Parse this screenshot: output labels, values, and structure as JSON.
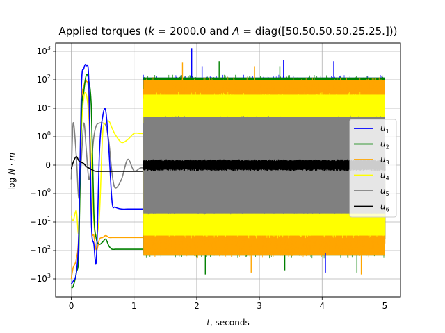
{
  "chart_data": {
    "type": "line",
    "title": "Applied torques (k = 2000.0 and Λ = diag([50.50.50.50.25.25.]))",
    "title_parts": {
      "prefix": "Applied torques (",
      "k_symbol": "k",
      "k_value": " = 2000.0 and ",
      "lambda_symbol": "Λ",
      "lambda_value": " = diag([50.50.50.50.25.25.]))"
    },
    "xlabel": "t, seconds",
    "xlabel_parts": {
      "var": "t",
      "rest": ", seconds"
    },
    "ylabel": "log N · m",
    "ylabel_parts": {
      "prefix": "log ",
      "N": "N",
      "dot": " · ",
      "m": "m"
    },
    "xlim": [
      -0.25,
      5.25
    ],
    "x_ticks": [
      0,
      1,
      2,
      3,
      4,
      5
    ],
    "x_tick_labels": [
      "0",
      "1",
      "2",
      "3",
      "4",
      "5"
    ],
    "y_scale": "symlog",
    "y_ticks": [
      1000,
      100,
      10,
      1,
      0,
      -1,
      -10,
      -100,
      -1000
    ],
    "y_tick_labels": [
      {
        "base": "10",
        "exp": "3"
      },
      {
        "base": "10",
        "exp": "2"
      },
      {
        "base": "10",
        "exp": "1"
      },
      {
        "base": "10",
        "exp": "0"
      },
      {
        "base": "0",
        "exp": ""
      },
      {
        "base": "−10",
        "exp": "0"
      },
      {
        "base": "−10",
        "exp": "1"
      },
      {
        "base": "−10",
        "exp": "2"
      },
      {
        "base": "−10",
        "exp": "3"
      }
    ],
    "grid": true,
    "legend_position": "center-right",
    "series": [
      {
        "name": "u1",
        "label_base": "u",
        "label_sub": "1",
        "color": "#0000ff"
      },
      {
        "name": "u2",
        "label_base": "u",
        "label_sub": "2",
        "color": "#008000"
      },
      {
        "name": "u3",
        "label_base": "u",
        "label_sub": "3",
        "color": "#ffa500"
      },
      {
        "name": "u4",
        "label_base": "u",
        "label_sub": "4",
        "color": "#ffff00"
      },
      {
        "name": "u5",
        "label_base": "u",
        "label_sub": "5",
        "color": "#808080"
      },
      {
        "name": "u6",
        "label_base": "u",
        "label_sub": "6",
        "color": "#000000"
      }
    ],
    "transient": {
      "x": [
        0,
        0.03,
        0.08,
        0.12,
        0.16,
        0.2,
        0.24,
        0.28,
        0.32,
        0.36,
        0.4,
        0.45,
        0.5,
        0.55,
        0.6,
        0.65,
        0.7,
        0.8,
        0.9,
        1.0,
        1.1,
        1.15
      ],
      "u1": [
        -1500,
        -1200,
        -600,
        -20,
        50,
        250,
        320,
        80,
        -10,
        -60,
        -200,
        0.5,
        5,
        8,
        0.5,
        -2,
        -3,
        -3.5,
        -3.5,
        -3.5,
        -3.5,
        -3.5
      ],
      "u2": [
        -2000,
        -1800,
        -600,
        -100,
        5,
        40,
        150,
        90,
        10,
        -5,
        -40,
        -60,
        -50,
        -40,
        -70,
        -90,
        -90,
        -90,
        -90,
        -90,
        -90,
        -90
      ],
      "u3": [
        -1000,
        -400,
        -200,
        -20,
        10,
        60,
        90,
        20,
        -10,
        -30,
        -100,
        -40,
        -35,
        -30,
        -35,
        -35,
        -35,
        -35,
        -35,
        -35,
        -35,
        -35
      ],
      "u4": [
        -6,
        -9,
        -4,
        -20,
        1.5,
        25,
        30,
        5,
        0.2,
        -10,
        -30,
        -5,
        1.2,
        3,
        3.5,
        2,
        1.2,
        0.8,
        0.9,
        1.3,
        1.3,
        1.3
      ],
      "u5": [
        -0.5,
        3,
        0.3,
        -1.5,
        0.2,
        3,
        0.5,
        -0.5,
        0.1,
        1,
        2.5,
        3,
        3,
        2.5,
        0.8,
        -0.3,
        -0.8,
        -0.5,
        0.2,
        -0.2,
        -0.1,
        -0.1
      ],
      "u6": [
        -0.15,
        0.1,
        0.3,
        0.15,
        0.1,
        0.05,
        -0.05,
        -0.1,
        -0.15,
        -0.2,
        -0.22,
        -0.22,
        -0.22,
        -0.22,
        -0.22,
        -0.22,
        -0.22,
        -0.22,
        -0.22,
        -0.22,
        -0.22,
        -0.22
      ]
    },
    "oscillation": {
      "x_start": 1.15,
      "x_end": 5.0,
      "envelopes": {
        "u5": {
          "top": 5,
          "bottom": -5
        },
        "u4": {
          "top": 30,
          "bottom": -30
        },
        "u3": {
          "top": 100,
          "bottom": -150
        },
        "u2": {
          "top": 120,
          "bottom": -150
        },
        "u1": {
          "top": 120,
          "bottom": -120
        },
        "u6": {
          "top": 0.2,
          "bottom": -0.2
        }
      },
      "spike_levels": {
        "u1": [
          1300,
          500,
          450,
          300,
          -600
        ],
        "u2": [
          450,
          300,
          -600,
          -700,
          -500
        ],
        "u3": [
          400,
          300,
          -700,
          -600
        ]
      }
    }
  }
}
